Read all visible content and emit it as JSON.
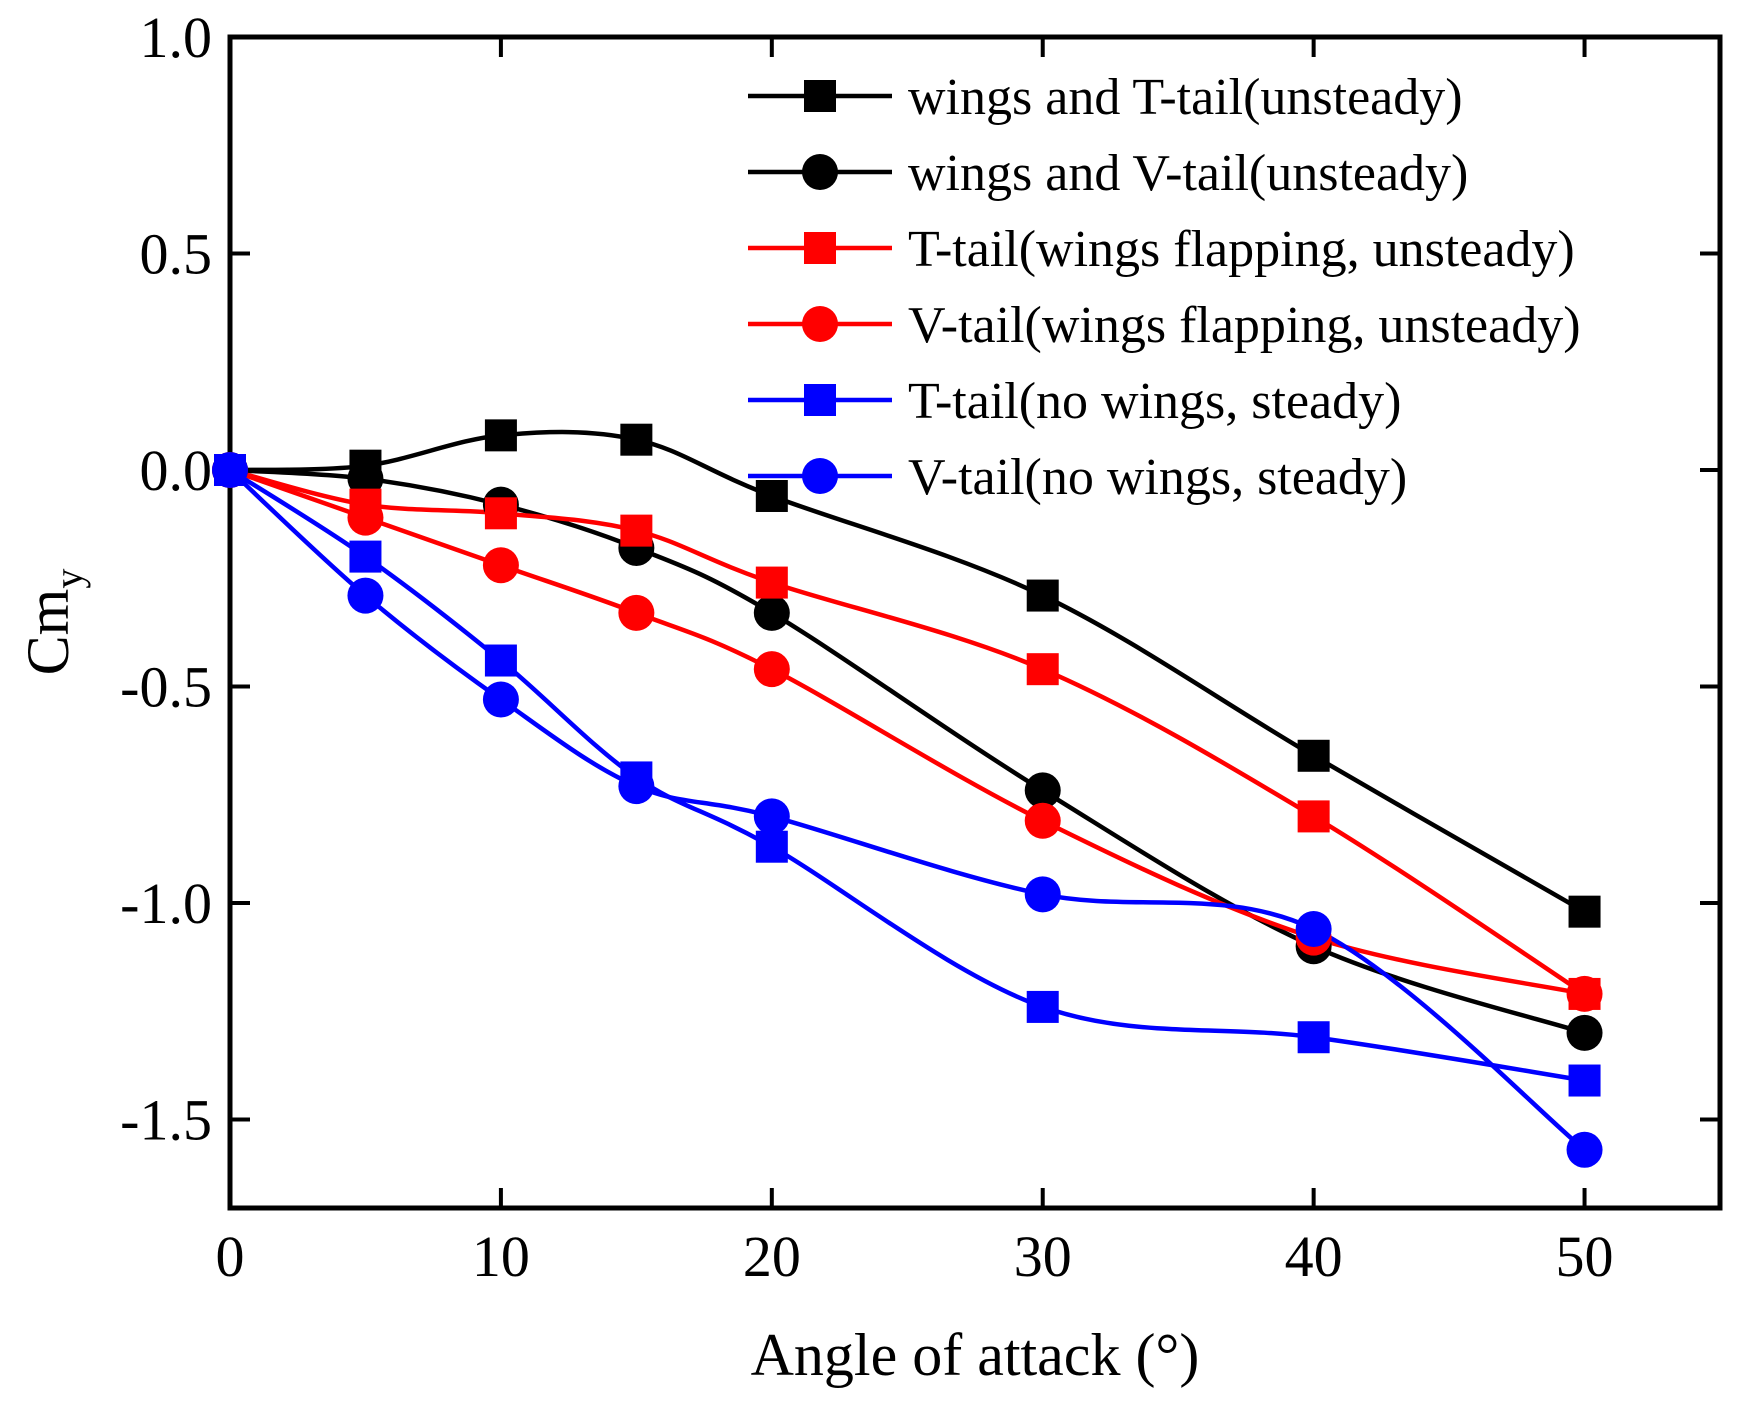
{
  "chart_data": {
    "type": "line",
    "title": "",
    "xlabel": "Angle of attack (°)",
    "ylabel": {
      "main": "Cm",
      "sub": "y"
    },
    "xlim": [
      0,
      55
    ],
    "ylim": [
      -1.7,
      1.0
    ],
    "xticks": [
      0,
      10,
      20,
      30,
      40,
      50
    ],
    "xtick_labels": [
      "0",
      "10",
      "20",
      "30",
      "40",
      "50"
    ],
    "yticks": [
      1.0,
      0.5,
      0.0,
      -0.5,
      -1.0,
      -1.5
    ],
    "ytick_labels": [
      "1.0",
      "0.5",
      "0.0",
      "-0.5",
      "-1.0",
      "-1.5"
    ],
    "grid": false,
    "legend_position": "top-right",
    "x": [
      0,
      5,
      10,
      15,
      20,
      30,
      40,
      50
    ],
    "series": [
      {
        "name": "wings and T-tail(unsteady)",
        "color": "#000000",
        "marker": "square",
        "values": [
          0.0,
          0.01,
          0.08,
          0.07,
          -0.06,
          -0.29,
          -0.66,
          -1.02
        ]
      },
      {
        "name": "wings and V-tail(unsteady)",
        "color": "#000000",
        "marker": "circle",
        "values": [
          0.0,
          -0.02,
          -0.08,
          -0.18,
          -0.33,
          -0.74,
          -1.1,
          -1.3
        ]
      },
      {
        "name": "T-tail(wings flapping, unsteady)",
        "color": "#ff0000",
        "marker": "square",
        "values": [
          0.0,
          -0.08,
          -0.1,
          -0.14,
          -0.26,
          -0.46,
          -0.8,
          -1.21
        ]
      },
      {
        "name": "V-tail(wings flapping, unsteady)",
        "color": "#ff0000",
        "marker": "circle",
        "values": [
          0.0,
          -0.11,
          -0.22,
          -0.33,
          -0.46,
          -0.81,
          -1.08,
          -1.21
        ]
      },
      {
        "name": "T-tail(no wings, steady)",
        "color": "#0000ff",
        "marker": "square",
        "values": [
          0.0,
          -0.2,
          -0.44,
          -0.71,
          -0.87,
          -1.24,
          -1.31,
          -1.41
        ]
      },
      {
        "name": "V-tail(no wings, steady)",
        "color": "#0000ff",
        "marker": "circle",
        "values": [
          0.0,
          -0.29,
          -0.53,
          -0.73,
          -0.8,
          -0.98,
          -1.06,
          -1.57
        ]
      }
    ]
  }
}
